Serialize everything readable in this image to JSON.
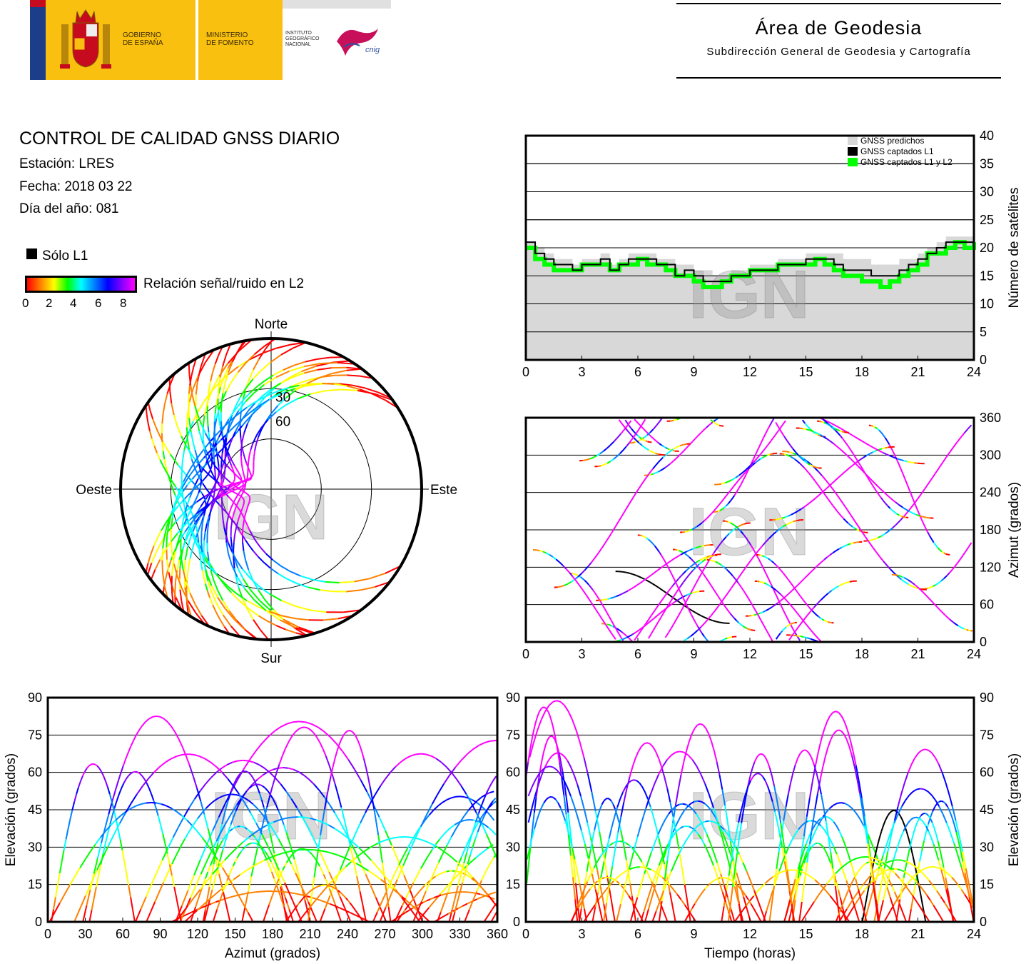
{
  "header": {
    "gobierno": "GOBIERNO\nDE ESPAÑA",
    "ministerio": "MINISTERIO\nDE FOMENTO",
    "instituto": "INSTITUTO\nGEOGRÁFICO\nNACIONAL",
    "cnig": "cnig",
    "area_title": "Área de Geodesia",
    "area_subtitle": "Subdirección General de Geodesia y Cartografía"
  },
  "info": {
    "title": "CONTROL DE CALIDAD GNSS DIARIO",
    "station": "Estación: LRES",
    "date": "Fecha: 2018 03 22",
    "doy": "Día del año: 081"
  },
  "legend": {
    "l1_only": "Sólo L1",
    "snr_label": "Relación señal/ruido en L2",
    "snr_ticks": [
      "0",
      "2",
      "4",
      "6",
      "8"
    ]
  },
  "watermark": "IGN",
  "colors": {
    "predicted": "#d8d8d8",
    "l1": "#000000",
    "l1l2": "#00ff00",
    "snr_scale": [
      "#ff0000",
      "#ff8000",
      "#ffff00",
      "#00ff00",
      "#00ffff",
      "#0080ff",
      "#0000ff",
      "#8000ff",
      "#ff00ff"
    ]
  },
  "chart_data": [
    {
      "id": "satellites",
      "type": "area",
      "ylabel": "Número de satélites",
      "xlim": [
        0,
        24
      ],
      "ylim": [
        0,
        40
      ],
      "xticks": [
        "0",
        "3",
        "6",
        "9",
        "12",
        "15",
        "18",
        "21",
        "24"
      ],
      "yticks": [
        "0",
        "5",
        "10",
        "15",
        "20",
        "25",
        "30",
        "35",
        "40"
      ],
      "legend": [
        "GNSS predichos",
        "GNSS captados L1",
        "GNSS captados L1 y L2"
      ],
      "legend_position": "top-right",
      "grid": true,
      "x": [
        0,
        0.5,
        1,
        1.5,
        2,
        2.5,
        3,
        3.5,
        4,
        4.5,
        5,
        5.5,
        6,
        6.5,
        7,
        7.5,
        8,
        8.5,
        9,
        9.5,
        10,
        10.5,
        11,
        11.5,
        12,
        12.5,
        13,
        13.5,
        14,
        14.5,
        15,
        15.5,
        16,
        16.5,
        17,
        17.5,
        18,
        18.5,
        19,
        19.5,
        20,
        20.5,
        21,
        21.5,
        22,
        22.5,
        23,
        23.5,
        24
      ],
      "series": [
        {
          "name": "GNSS predichos",
          "values": [
            21,
            20,
            19,
            18,
            18,
            17,
            18,
            18,
            19,
            17,
            18,
            19,
            19,
            19,
            18,
            18,
            17,
            17,
            16,
            16,
            15,
            15,
            16,
            16,
            17,
            17,
            17,
            18,
            18,
            18,
            19,
            19,
            19,
            19,
            18,
            18,
            18,
            17,
            17,
            17,
            18,
            18,
            19,
            20,
            21,
            22,
            22,
            22,
            23
          ]
        },
        {
          "name": "GNSS captados L1",
          "values": [
            21,
            19,
            18,
            17,
            17,
            16,
            17,
            17,
            18,
            16,
            17,
            18,
            18,
            18,
            17,
            17,
            15,
            16,
            15,
            14,
            14,
            14,
            15,
            15,
            16,
            16,
            16,
            17,
            17,
            17,
            18,
            18,
            18,
            17,
            16,
            16,
            16,
            15,
            15,
            15,
            16,
            17,
            18,
            19,
            20,
            21,
            21,
            21,
            22
          ]
        },
        {
          "name": "GNSS captados L1 y L2",
          "values": [
            20,
            18,
            17,
            16,
            16,
            16,
            17,
            17,
            17,
            16,
            17,
            17,
            18,
            17,
            17,
            16,
            15,
            15,
            14,
            13,
            13,
            14,
            15,
            15,
            16,
            16,
            16,
            17,
            17,
            17,
            17,
            18,
            17,
            16,
            15,
            15,
            14,
            14,
            13,
            14,
            15,
            16,
            17,
            19,
            19,
            20,
            21,
            20,
            21
          ]
        }
      ]
    },
    {
      "id": "azimuth-time",
      "type": "scatter",
      "ylabel": "Azimut (grados)",
      "xlim": [
        0,
        24
      ],
      "ylim": [
        0,
        360
      ],
      "xticks": [
        "0",
        "3",
        "6",
        "9",
        "12",
        "15",
        "18",
        "21",
        "24"
      ],
      "yticks": [
        "0",
        "60",
        "120",
        "180",
        "240",
        "300",
        "360"
      ],
      "grid": true
    },
    {
      "id": "skyplot",
      "type": "scatter",
      "labels": {
        "north": "Norte",
        "south": "Sur",
        "east": "Este",
        "west": "Oeste"
      },
      "ring_labels": [
        "30",
        "60"
      ]
    },
    {
      "id": "elev-azimuth",
      "type": "scatter",
      "xlabel": "Azimut (grados)",
      "ylabel": "Elevación (grados)",
      "xlim": [
        0,
        360
      ],
      "ylim": [
        0,
        90
      ],
      "xticks": [
        "0",
        "30",
        "60",
        "90",
        "120",
        "150",
        "180",
        "210",
        "240",
        "270",
        "300",
        "330",
        "360"
      ],
      "yticks": [
        "0",
        "15",
        "30",
        "45",
        "60",
        "75",
        "90"
      ],
      "grid": true
    },
    {
      "id": "elev-time",
      "type": "scatter",
      "xlabel": "Tiempo (horas)",
      "ylabel": "Elevación (grados)",
      "xlim": [
        0,
        24
      ],
      "ylim": [
        0,
        90
      ],
      "xticks": [
        "0",
        "3",
        "6",
        "9",
        "12",
        "15",
        "18",
        "21",
        "24"
      ],
      "yticks": [
        "0",
        "15",
        "30",
        "45",
        "60",
        "75",
        "90"
      ],
      "grid": true
    }
  ]
}
